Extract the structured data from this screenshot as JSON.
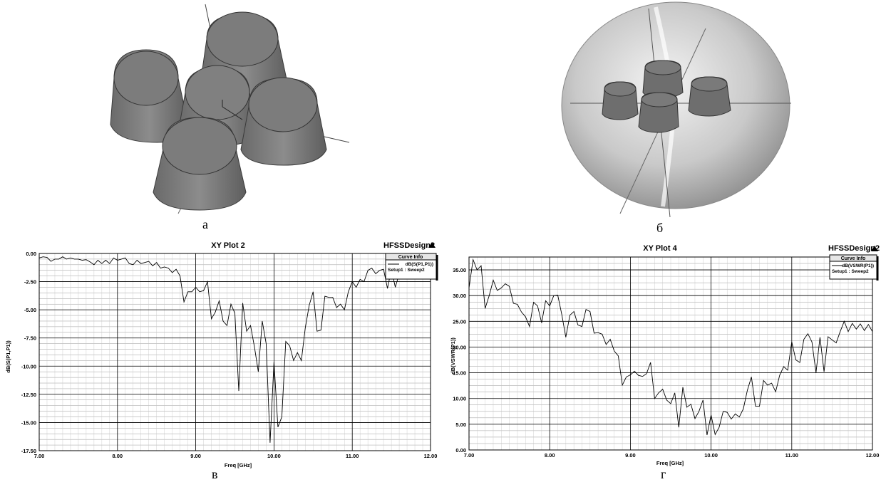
{
  "captions": {
    "a": "а",
    "b": "б",
    "c": "в",
    "d": "г"
  },
  "plots": [
    {
      "title": "XY Plot 2",
      "design": "HFSSDesign2",
      "legend_header": "Curve Info",
      "legend_curve": "dB(S(P1,P1))",
      "legend_setup": "Setup1 : Sweep2",
      "xlabel": "Freq [GHz]",
      "ylabel": "dB(S(P1,P1))",
      "xticks": [
        "7.00",
        "8.00",
        "9.00",
        "10.00",
        "11.00",
        "12.00"
      ],
      "yticks": [
        "0.00",
        "-2.50",
        "-5.00",
        "-7.50",
        "-10.00",
        "-12.50",
        "-15.00",
        "-17.50"
      ]
    },
    {
      "title": "XY Plot 4",
      "design": "HFSSDesign2",
      "legend_header": "Curve Info",
      "legend_curve": "dB(VSWR(P1))",
      "legend_setup": "Setup1 : Sweep2",
      "xlabel": "Freq [GHz]",
      "ylabel": "dB(VSWR(P1))",
      "xticks": [
        "7.00",
        "8.00",
        "9.00",
        "10.00",
        "11.00",
        "12.00"
      ],
      "yticks": [
        "0.00",
        "5.00",
        "10.00",
        "15.00",
        "20.00",
        "25.00",
        "30.00",
        "35.00"
      ]
    }
  ],
  "chart_data": [
    {
      "type": "line",
      "title": "XY Plot 2",
      "xlabel": "Freq [GHz]",
      "ylabel": "dB(S(P1,P1))",
      "xlim": [
        7,
        12
      ],
      "ylim": [
        -17.5,
        0
      ],
      "grid": true,
      "legend": "top-right",
      "series": [
        {
          "name": "dB(S(P1,P1))",
          "x": [
            7.0,
            7.05,
            7.1,
            7.15,
            7.2,
            7.25,
            7.3,
            7.35,
            7.4,
            7.45,
            7.5,
            7.55,
            7.6,
            7.65,
            7.7,
            7.75,
            7.8,
            7.85,
            7.9,
            7.95,
            8.0,
            8.05,
            8.1,
            8.15,
            8.2,
            8.25,
            8.3,
            8.35,
            8.4,
            8.45,
            8.5,
            8.55,
            8.6,
            8.65,
            8.7,
            8.75,
            8.8,
            8.85,
            8.9,
            8.95,
            9.0,
            9.05,
            9.1,
            9.15,
            9.2,
            9.25,
            9.3,
            9.35,
            9.4,
            9.45,
            9.5,
            9.55,
            9.6,
            9.65,
            9.7,
            9.75,
            9.8,
            9.85,
            9.9,
            9.95,
            10.0,
            10.05,
            10.1,
            10.15,
            10.2,
            10.25,
            10.3,
            10.35,
            10.4,
            10.45,
            10.5,
            10.55,
            10.6,
            10.65,
            10.7,
            10.75,
            10.8,
            10.85,
            10.9,
            10.95,
            11.0,
            11.05,
            11.1,
            11.15,
            11.2,
            11.25,
            11.3,
            11.35,
            11.4,
            11.45,
            11.5,
            11.55,
            11.6,
            11.65,
            11.7
          ],
          "values": [
            -0.4,
            -0.3,
            -0.35,
            -0.7,
            -0.5,
            -0.5,
            -0.3,
            -0.5,
            -0.4,
            -0.5,
            -0.5,
            -0.6,
            -0.55,
            -0.75,
            -1.0,
            -0.6,
            -0.9,
            -0.6,
            -0.9,
            -0.4,
            -0.6,
            -0.5,
            -0.4,
            -0.9,
            -1.0,
            -0.6,
            -0.9,
            -0.8,
            -0.7,
            -1.1,
            -0.8,
            -1.3,
            -1.2,
            -1.3,
            -1.7,
            -1.4,
            -2.0,
            -4.3,
            -3.4,
            -3.4,
            -3.0,
            -3.4,
            -3.3,
            -2.5,
            -5.8,
            -5.2,
            -4.2,
            -6.0,
            -6.4,
            -4.5,
            -5.3,
            -12.2,
            -4.4,
            -6.9,
            -6.4,
            -8.3,
            -10.5,
            -6.0,
            -8.0,
            -16.8,
            -9.6,
            -15.4,
            -14.5,
            -7.8,
            -8.2,
            -9.5,
            -8.8,
            -9.5,
            -6.6,
            -4.6,
            -3.4,
            -6.9,
            -6.8,
            -3.8,
            -3.9,
            -3.9,
            -4.8,
            -4.5,
            -5.0,
            -3.4,
            -2.5,
            -3.0,
            -2.3,
            -2.5,
            -1.5,
            -1.3,
            -1.8,
            -1.5,
            -1.4,
            -3.1,
            -1.4,
            -3.0,
            -1.8,
            -2.2,
            -1.8
          ]
        }
      ]
    },
    {
      "type": "line",
      "title": "XY Plot 4",
      "xlabel": "Freq [GHz]",
      "ylabel": "dB(VSWR(P1))",
      "xlim": [
        7,
        12
      ],
      "ylim": [
        0,
        37.5
      ],
      "grid": true,
      "legend": "top-right",
      "series": [
        {
          "name": "dB(VSWR(P1))",
          "x": [
            7.0,
            7.05,
            7.1,
            7.15,
            7.2,
            7.25,
            7.3,
            7.35,
            7.4,
            7.45,
            7.5,
            7.55,
            7.6,
            7.65,
            7.7,
            7.75,
            7.8,
            7.85,
            7.9,
            7.95,
            8.0,
            8.05,
            8.1,
            8.15,
            8.2,
            8.25,
            8.3,
            8.35,
            8.4,
            8.45,
            8.5,
            8.55,
            8.6,
            8.65,
            8.7,
            8.75,
            8.8,
            8.85,
            8.9,
            8.95,
            9.0,
            9.05,
            9.1,
            9.15,
            9.2,
            9.25,
            9.3,
            9.35,
            9.4,
            9.45,
            9.5,
            9.55,
            9.6,
            9.65,
            9.7,
            9.75,
            9.8,
            9.85,
            9.9,
            9.95,
            10.0,
            10.05,
            10.1,
            10.15,
            10.2,
            10.25,
            10.3,
            10.35,
            10.4,
            10.45,
            10.5,
            10.55,
            10.6,
            10.65,
            10.7,
            10.75,
            10.8,
            10.85,
            10.9,
            10.95,
            11.0,
            11.05,
            11.1,
            11.15,
            11.2,
            11.25,
            11.3,
            11.35,
            11.4,
            11.45,
            11.5,
            11.55,
            11.6,
            11.65,
            11.7,
            11.75,
            11.8,
            11.85,
            11.9,
            11.95,
            12.0
          ],
          "values": [
            31.5,
            37.0,
            35.0,
            35.8,
            27.5,
            30.0,
            33.0,
            31.0,
            31.5,
            32.3,
            31.8,
            28.5,
            28.3,
            26.8,
            25.9,
            24.0,
            28.7,
            28.0,
            24.7,
            29.0,
            28.0,
            30.0,
            30.1,
            26.3,
            21.9,
            26.2,
            26.9,
            24.3,
            24.0,
            27.3,
            26.9,
            22.7,
            22.8,
            22.5,
            20.5,
            21.5,
            19.2,
            18.3,
            12.6,
            14.2,
            14.6,
            15.3,
            14.5,
            14.3,
            14.8,
            17.0,
            10.0,
            11.1,
            11.8,
            9.7,
            9.0,
            11.1,
            4.4,
            12.2,
            8.3,
            8.9,
            6.1,
            7.5,
            9.7,
            2.9,
            6.8,
            3.0,
            4.4,
            7.5,
            7.3,
            6.0,
            7.0,
            6.4,
            8.0,
            11.6,
            14.2,
            8.5,
            8.5,
            13.5,
            12.6,
            13.0,
            11.3,
            14.5,
            16.2,
            15.5,
            21.0,
            17.5,
            17.0,
            21.5,
            22.6,
            21.0,
            15.0,
            21.9,
            15.2,
            22.0,
            21.4,
            20.8,
            23.0,
            25.0,
            23.0,
            24.6,
            23.5,
            24.5,
            23.2,
            24.4,
            23.0
          ]
        }
      ]
    }
  ]
}
